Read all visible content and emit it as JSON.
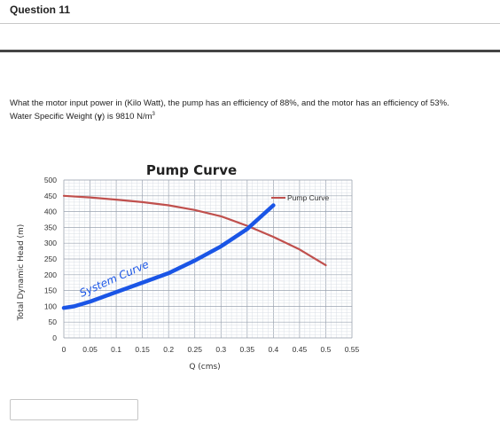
{
  "question": {
    "title": "Question 11",
    "text_line1": "What the motor input power in (Kilo Watt), the pump has an efficiency of 88%, and the motor has an efficiency of 53%.",
    "text_line2_prefix": "Water Specific Weight (",
    "gamma_symbol": "γ",
    "text_line2_suffix": ") is 9810 N/m",
    "exponent": "3"
  },
  "answer": {
    "value": ""
  },
  "chart_data": {
    "type": "line",
    "title": "Pump Curve",
    "xlabel": "Q (cms)",
    "ylabel": "Total Dynamic Head (m)",
    "xlim": [
      0,
      0.55
    ],
    "ylim": [
      0,
      500
    ],
    "x_ticks": [
      "0",
      "0.05",
      "0.1",
      "0.15",
      "0.2",
      "0.25",
      "0.3",
      "0.35",
      "0.4",
      "0.45",
      "0.5",
      "0.55"
    ],
    "y_ticks": [
      "0",
      "50",
      "100",
      "150",
      "200",
      "250",
      "300",
      "350",
      "400",
      "450",
      "500"
    ],
    "grid": true,
    "legend_position": "top-right",
    "series": [
      {
        "name": "Pump Curve",
        "color": "#c0504d",
        "x": [
          0,
          0.05,
          0.1,
          0.15,
          0.2,
          0.25,
          0.3,
          0.35,
          0.4,
          0.45,
          0.5
        ],
        "y": [
          450,
          445,
          438,
          430,
          420,
          405,
          385,
          355,
          320,
          280,
          230
        ]
      },
      {
        "annotation": "System Curve",
        "color": "#1a55e6",
        "x": [
          0,
          0.02,
          0.05,
          0.1,
          0.15,
          0.2,
          0.25,
          0.3,
          0.35,
          0.4
        ],
        "y": [
          95,
          100,
          115,
          145,
          175,
          205,
          245,
          290,
          345,
          420
        ]
      }
    ]
  }
}
